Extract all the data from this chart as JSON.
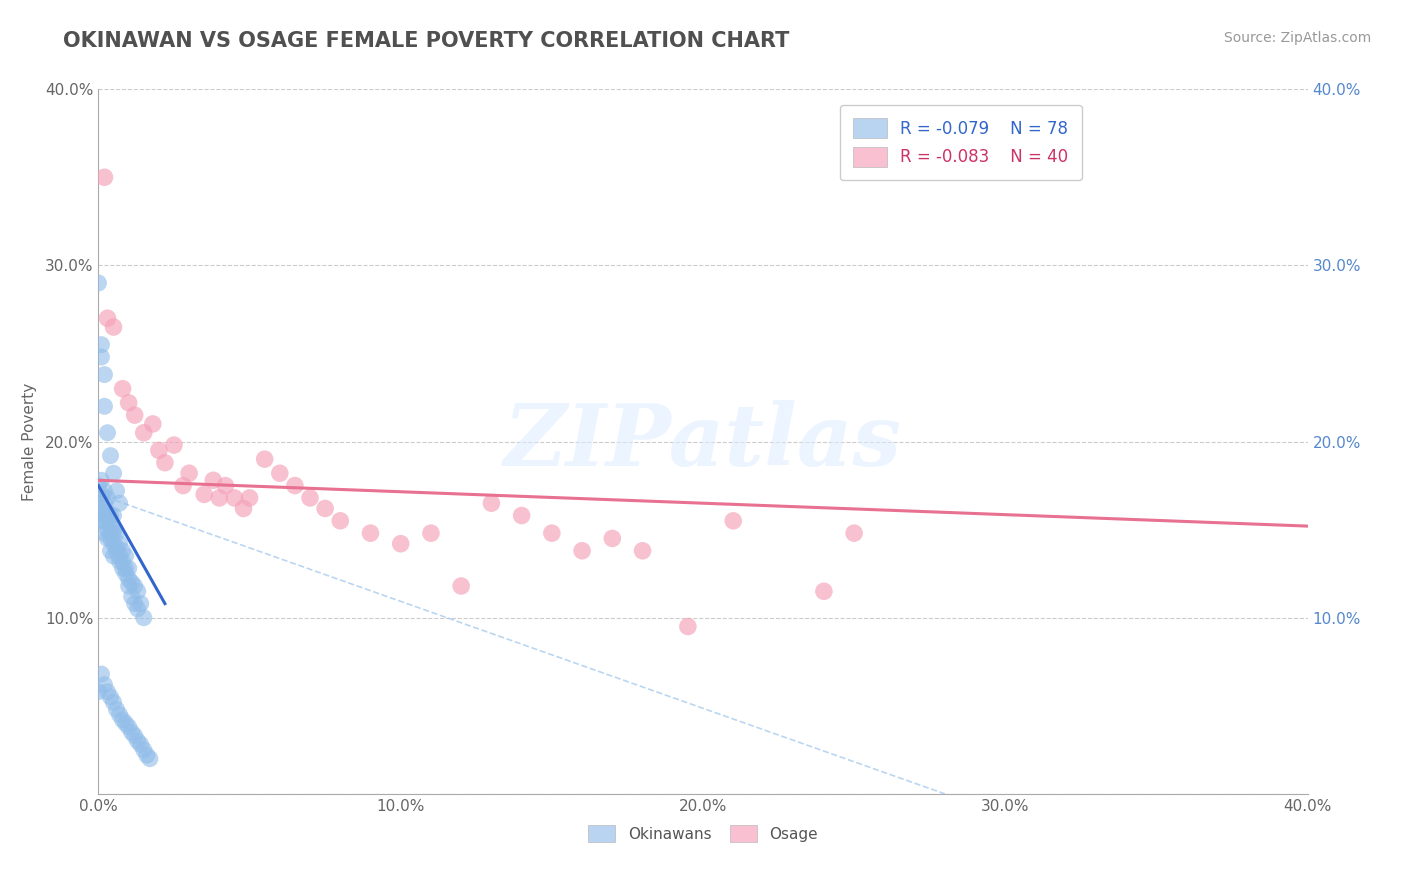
{
  "title": "OKINAWAN VS OSAGE FEMALE POVERTY CORRELATION CHART",
  "source": "Source: ZipAtlas.com",
  "ylabel": "Female Poverty",
  "xlim": [
    0.0,
    0.4
  ],
  "ylim": [
    0.0,
    0.4
  ],
  "xtick_vals": [
    0.0,
    0.1,
    0.2,
    0.3,
    0.4
  ],
  "ytick_vals": [
    0.0,
    0.1,
    0.2,
    0.3,
    0.4
  ],
  "watermark_text": "ZIPatlas",
  "okinawan_color": "#90bce8",
  "osage_color": "#f4a0b8",
  "okinawan_line_color": "#3366cc",
  "osage_line_color": "#e87090",
  "diagonal_color": "#aaccee",
  "background_color": "#ffffff",
  "title_color": "#505050",
  "source_color": "#999999",
  "legend_ok_color": "#b8d4f0",
  "legend_os_color": "#f8c0d0",
  "right_axis_color": "#5588cc",
  "left_axis_color": "#666666",
  "okinawan_scatter_x": [
    0.0,
    0.0,
    0.001,
    0.001,
    0.001,
    0.001,
    0.001,
    0.002,
    0.002,
    0.002,
    0.002,
    0.002,
    0.003,
    0.003,
    0.003,
    0.003,
    0.003,
    0.004,
    0.004,
    0.004,
    0.004,
    0.004,
    0.005,
    0.005,
    0.005,
    0.005,
    0.005,
    0.006,
    0.006,
    0.006,
    0.007,
    0.007,
    0.007,
    0.008,
    0.008,
    0.008,
    0.009,
    0.009,
    0.009,
    0.01,
    0.01,
    0.01,
    0.011,
    0.011,
    0.012,
    0.012,
    0.013,
    0.013,
    0.014,
    0.015,
    0.0,
    0.001,
    0.001,
    0.002,
    0.002,
    0.003,
    0.004,
    0.005,
    0.006,
    0.007,
    0.0,
    0.001,
    0.002,
    0.003,
    0.004,
    0.005,
    0.006,
    0.007,
    0.008,
    0.009,
    0.01,
    0.011,
    0.012,
    0.013,
    0.014,
    0.015,
    0.016,
    0.017
  ],
  "okinawan_scatter_y": [
    0.16,
    0.175,
    0.162,
    0.17,
    0.178,
    0.155,
    0.168,
    0.158,
    0.165,
    0.172,
    0.148,
    0.155,
    0.15,
    0.16,
    0.168,
    0.145,
    0.155,
    0.148,
    0.158,
    0.145,
    0.138,
    0.152,
    0.142,
    0.15,
    0.158,
    0.135,
    0.148,
    0.14,
    0.148,
    0.138,
    0.132,
    0.142,
    0.135,
    0.128,
    0.138,
    0.132,
    0.125,
    0.135,
    0.128,
    0.118,
    0.128,
    0.122,
    0.112,
    0.12,
    0.108,
    0.118,
    0.105,
    0.115,
    0.108,
    0.1,
    0.29,
    0.248,
    0.255,
    0.238,
    0.22,
    0.205,
    0.192,
    0.182,
    0.172,
    0.165,
    0.058,
    0.068,
    0.062,
    0.058,
    0.055,
    0.052,
    0.048,
    0.045,
    0.042,
    0.04,
    0.038,
    0.035,
    0.033,
    0.03,
    0.028,
    0.025,
    0.022,
    0.02
  ],
  "osage_scatter_x": [
    0.002,
    0.003,
    0.005,
    0.008,
    0.01,
    0.012,
    0.015,
    0.018,
    0.02,
    0.022,
    0.025,
    0.028,
    0.03,
    0.035,
    0.038,
    0.04,
    0.042,
    0.045,
    0.048,
    0.05,
    0.055,
    0.06,
    0.065,
    0.07,
    0.075,
    0.08,
    0.09,
    0.1,
    0.11,
    0.12,
    0.13,
    0.14,
    0.15,
    0.16,
    0.17,
    0.18,
    0.195,
    0.21,
    0.24,
    0.25
  ],
  "osage_scatter_y": [
    0.35,
    0.27,
    0.265,
    0.23,
    0.222,
    0.215,
    0.205,
    0.21,
    0.195,
    0.188,
    0.198,
    0.175,
    0.182,
    0.17,
    0.178,
    0.168,
    0.175,
    0.168,
    0.162,
    0.168,
    0.19,
    0.182,
    0.175,
    0.168,
    0.162,
    0.155,
    0.148,
    0.142,
    0.148,
    0.118,
    0.165,
    0.158,
    0.148,
    0.138,
    0.145,
    0.138,
    0.095,
    0.155,
    0.115,
    0.148
  ],
  "ok_trend_x0": 0.0,
  "ok_trend_x1": 0.022,
  "ok_trend_y0": 0.175,
  "ok_trend_y1": 0.108,
  "os_trend_x0": 0.0,
  "os_trend_x1": 0.4,
  "os_trend_y0": 0.178,
  "os_trend_y1": 0.152
}
